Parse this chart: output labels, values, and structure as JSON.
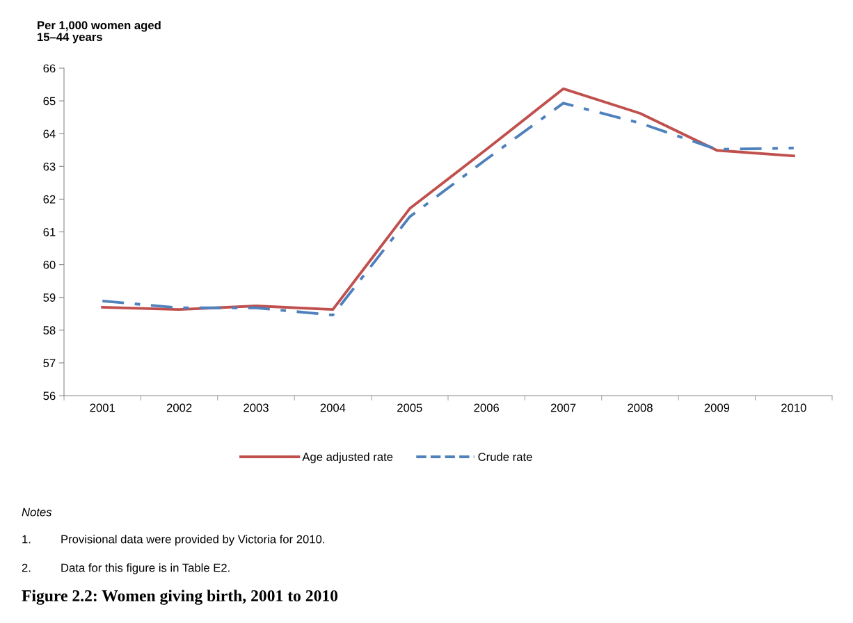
{
  "chart_data": {
    "type": "line",
    "title": "Figure 2.2: Women giving birth, 2001 to 2010",
    "ylabel": "Per 1,000 women aged\n15–44 years",
    "categories": [
      "2001",
      "2002",
      "2003",
      "2004",
      "2005",
      "2006",
      "2007",
      "2008",
      "2009",
      "2010"
    ],
    "series": [
      {
        "name": "Age adjusted rate",
        "color": "#c0504d",
        "line_style": "solid",
        "values": [
          58.7,
          58.63,
          58.74,
          58.63,
          61.71,
          63.52,
          65.37,
          64.62,
          63.49,
          63.32
        ]
      },
      {
        "name": "Crude rate",
        "color": "#4f81bd",
        "line_style": "dashdot",
        "values": [
          58.89,
          58.68,
          58.68,
          58.46,
          61.46,
          63.22,
          64.93,
          64.32,
          63.52,
          63.56
        ]
      }
    ],
    "ylim": [
      56,
      66
    ],
    "yticks": [
      56,
      57,
      58,
      59,
      60,
      61,
      62,
      63,
      64,
      65,
      66
    ],
    "grid": false,
    "legend": "bottom",
    "marker": "none",
    "annotations": [
      "Notes",
      "1. Provisional data were provided by Victoria for 2010.",
      "2. Data for this figure is in Table E2."
    ]
  }
}
